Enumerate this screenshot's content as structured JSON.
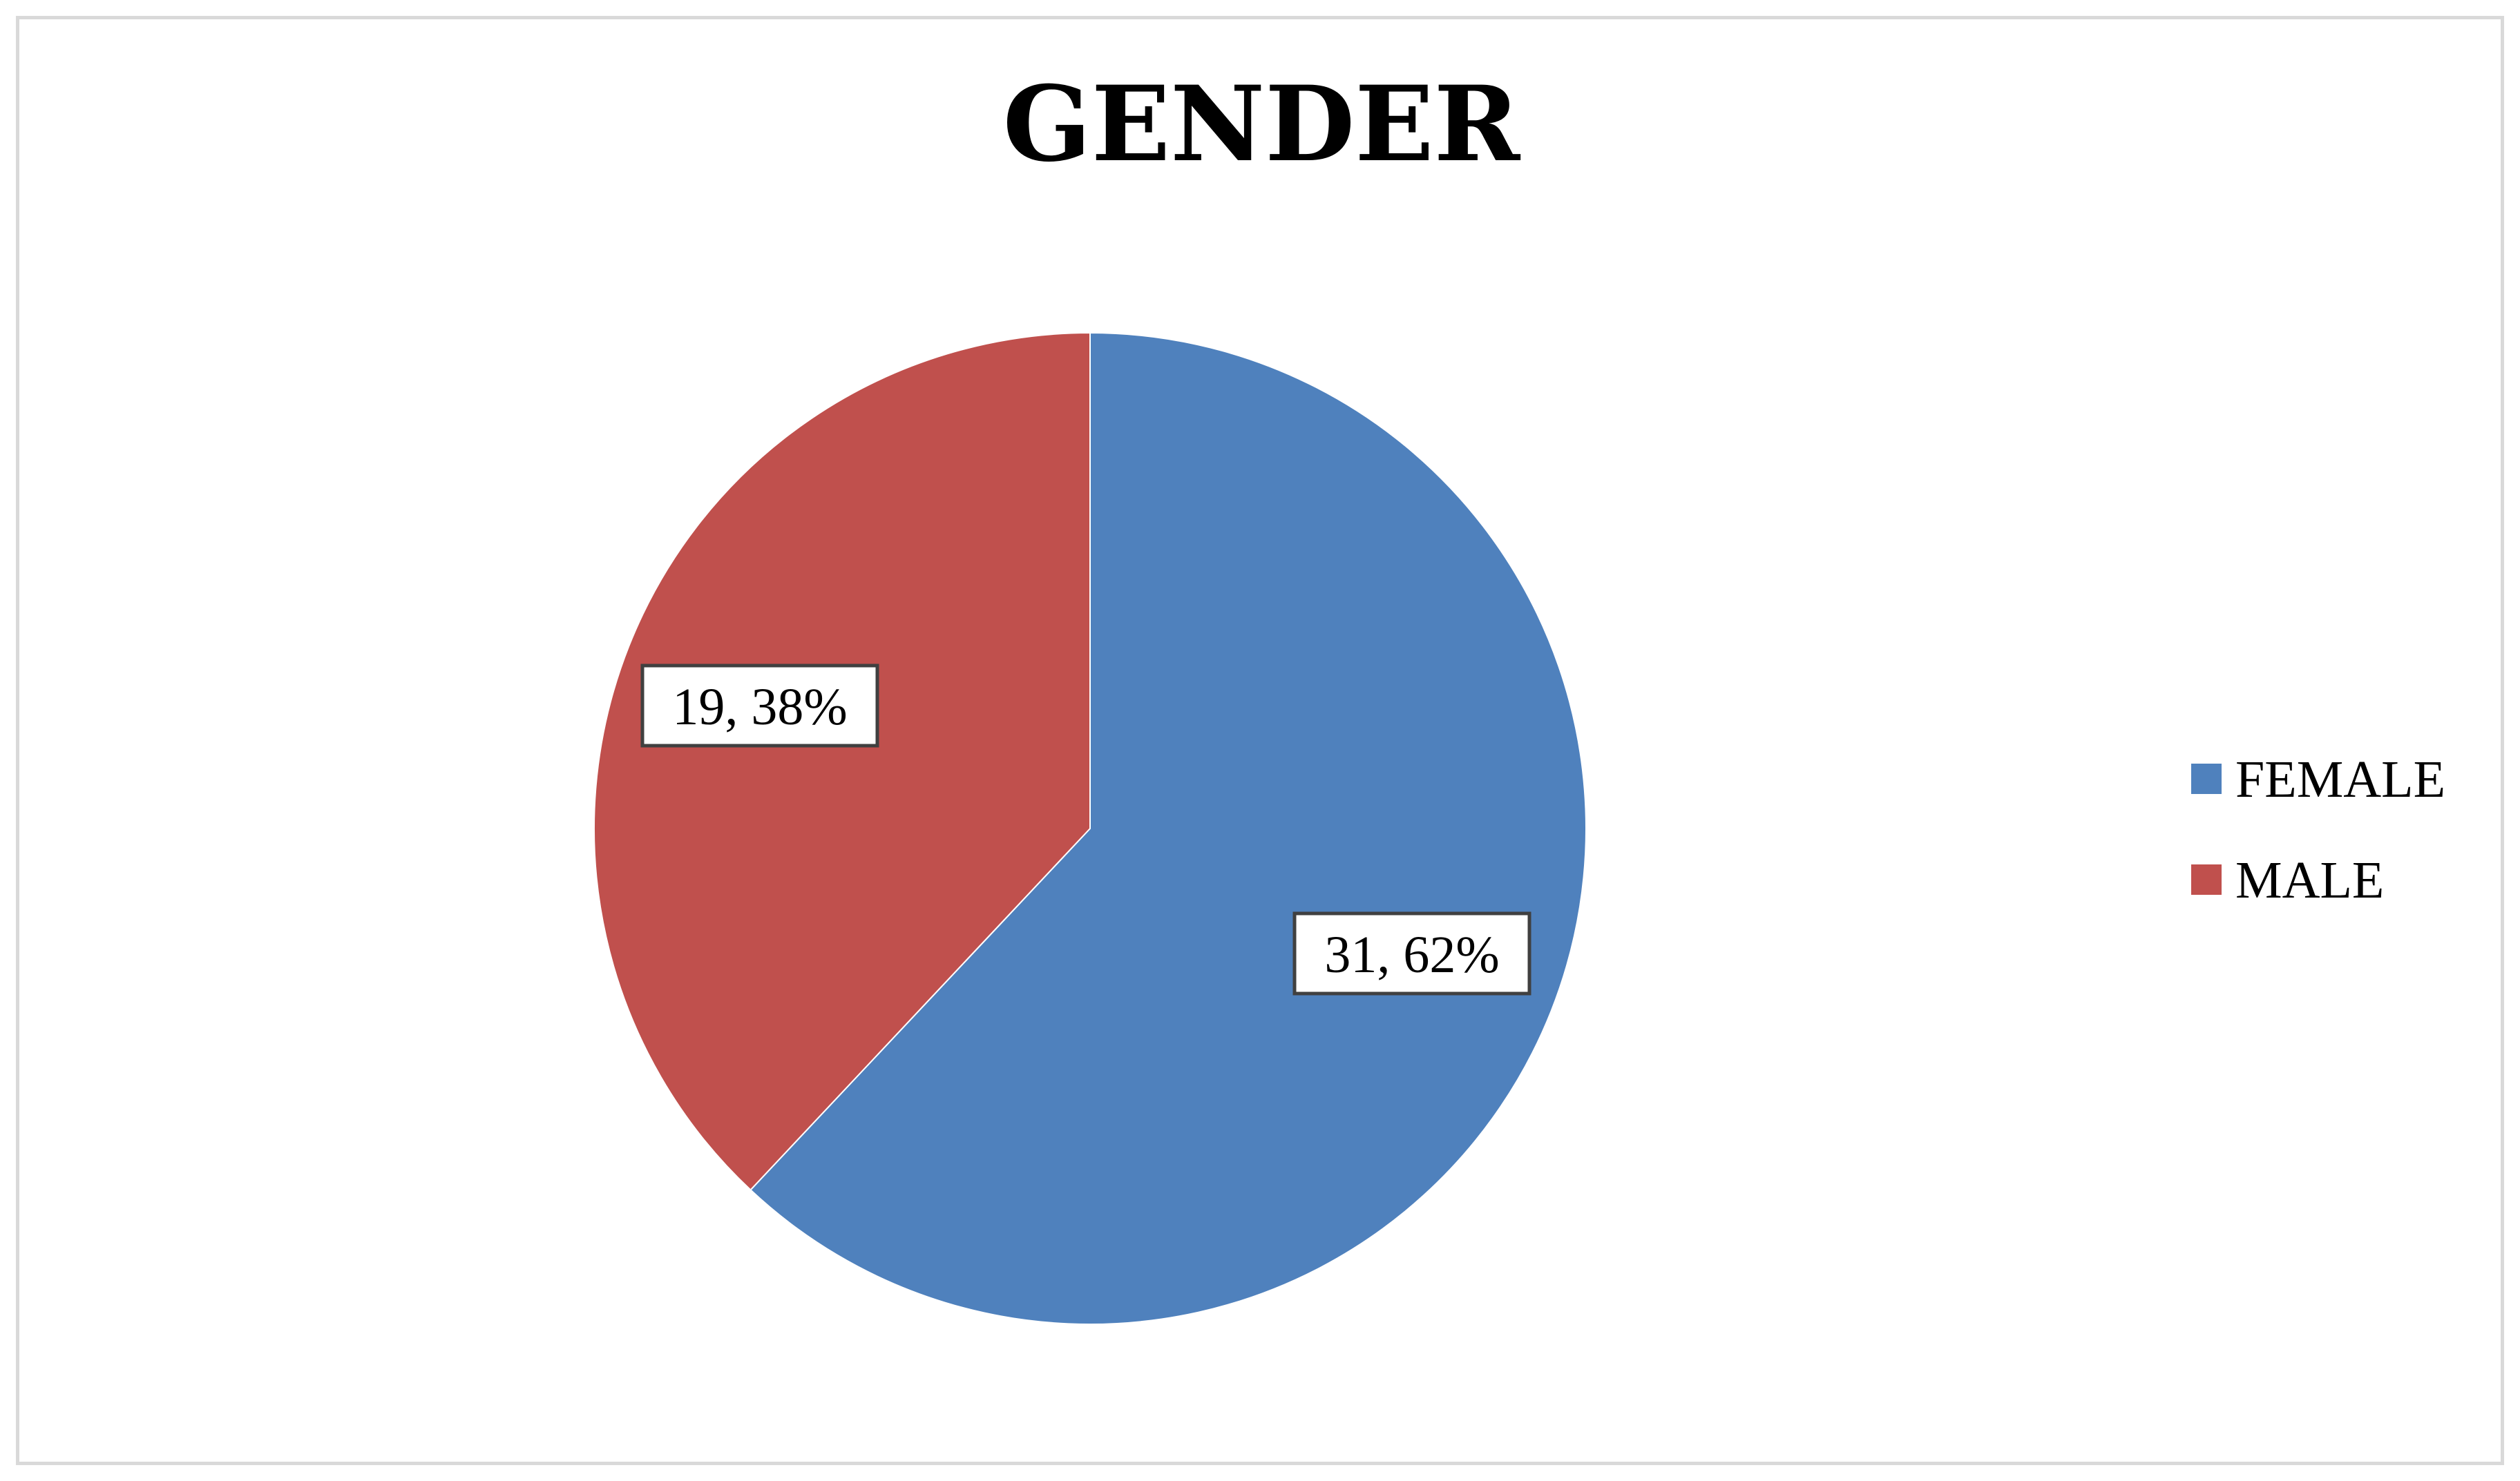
{
  "chart_data": {
    "type": "pie",
    "title": "GENDER",
    "start_angle_deg": 0,
    "direction": "clockwise",
    "legend_position": "right",
    "slices": [
      {
        "name": "FEMALE",
        "value": 31,
        "percent_label": "62%",
        "label": "31, 62%",
        "color": "#4f81bd"
      },
      {
        "name": "MALE",
        "value": 19,
        "percent_label": "38%",
        "label": "19, 38%",
        "color": "#c0504d"
      }
    ]
  }
}
